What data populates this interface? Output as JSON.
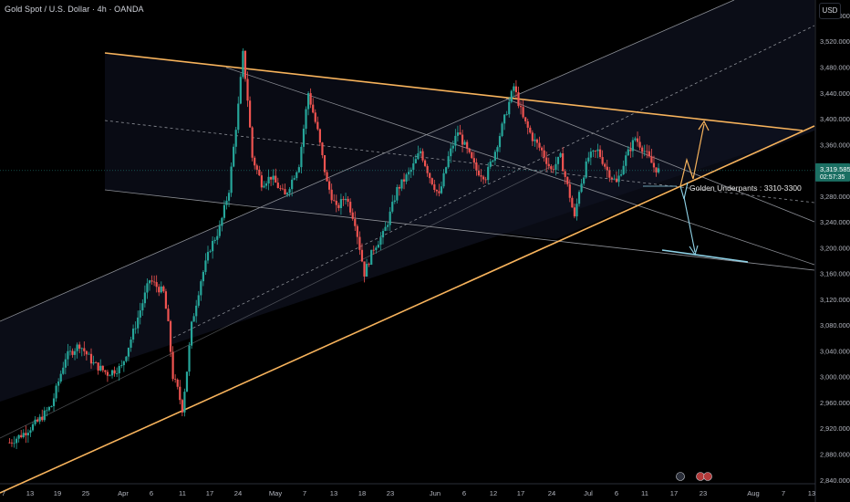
{
  "header": {
    "symbol_title": "Gold Spot / U.S. Dollar · 4h · OANDA",
    "currency_label": "USD"
  },
  "price_tag": {
    "price": "3,319.585",
    "countdown": "02:57:35"
  },
  "annotation": {
    "text": "Golden Underpants : 3310-3300"
  },
  "colors": {
    "background": "#000000",
    "up_candle": "#26a69a",
    "down_candle": "#ef5350",
    "trend_orange": "#f7b35c",
    "channel_line": "#8c8f96",
    "projection_blue": "#8fd3e8",
    "price_tag": "#1b6f63"
  },
  "chart_data": {
    "type": "candlestick",
    "timeframe": "4h",
    "y_axis": {
      "ticks": [
        "3,560.000",
        "3,520.000",
        "3,480.000",
        "3,440.000",
        "3,400.000",
        "3,360.000",
        "3,320.000",
        "3,280.000",
        "3,240.000",
        "3,200.000",
        "3,160.000",
        "3,120.000",
        "3,080.000",
        "3,040.000",
        "3,000.000",
        "2,960.000",
        "2,920.000",
        "2,880.000",
        "2,840.000"
      ],
      "range": [
        2834,
        3584
      ]
    },
    "x_axis": {
      "ticks": [
        "7",
        "13",
        "19",
        "25",
        "Apr",
        "6",
        "11",
        "17",
        "24",
        "May",
        "7",
        "13",
        "18",
        "23",
        "Jun",
        "6",
        "12",
        "17",
        "24",
        "Jul",
        "6",
        "11",
        "17",
        "23",
        "Aug",
        "7",
        "13"
      ]
    },
    "price_path": [
      [
        7,
        2898
      ],
      [
        10,
        2912
      ],
      [
        13,
        2930
      ],
      [
        16,
        2955
      ],
      [
        19,
        3030
      ],
      [
        22,
        3050
      ],
      [
        25,
        3020
      ],
      [
        28,
        3005
      ],
      [
        31,
        3015
      ],
      [
        34,
        3080
      ],
      [
        37,
        3150
      ],
      [
        40,
        3130
      ],
      [
        41,
        3080
      ],
      [
        42,
        3000
      ],
      [
        43,
        2980
      ],
      [
        44,
        2950
      ],
      [
        45,
        3010
      ],
      [
        46,
        3080
      ],
      [
        48,
        3150
      ],
      [
        50,
        3200
      ],
      [
        52,
        3230
      ],
      [
        54,
        3290
      ],
      [
        56,
        3420
      ],
      [
        57,
        3500
      ],
      [
        58,
        3430
      ],
      [
        59,
        3340
      ],
      [
        61,
        3300
      ],
      [
        63,
        3310
      ],
      [
        66,
        3280
      ],
      [
        69,
        3330
      ],
      [
        71,
        3440
      ],
      [
        73,
        3380
      ],
      [
        75,
        3300
      ],
      [
        77,
        3260
      ],
      [
        79,
        3280
      ],
      [
        81,
        3240
      ],
      [
        83,
        3160
      ],
      [
        85,
        3200
      ],
      [
        87,
        3220
      ],
      [
        88,
        3240
      ],
      [
        90,
        3290
      ],
      [
        93,
        3320
      ],
      [
        95,
        3350
      ],
      [
        97,
        3310
      ],
      [
        99,
        3280
      ],
      [
        101,
        3340
      ],
      [
        103,
        3380
      ],
      [
        105,
        3350
      ],
      [
        107,
        3320
      ],
      [
        109,
        3310
      ],
      [
        111,
        3350
      ],
      [
        113,
        3400
      ],
      [
        115,
        3450
      ],
      [
        117,
        3400
      ],
      [
        119,
        3370
      ],
      [
        121,
        3350
      ],
      [
        123,
        3320
      ],
      [
        125,
        3340
      ],
      [
        127,
        3280
      ],
      [
        128,
        3245
      ],
      [
        129,
        3290
      ],
      [
        131,
        3340
      ],
      [
        133,
        3350
      ],
      [
        135,
        3320
      ],
      [
        137,
        3300
      ],
      [
        139,
        3340
      ],
      [
        141,
        3370
      ],
      [
        143,
        3350
      ],
      [
        145,
        3325
      ],
      [
        146,
        3319.585
      ]
    ],
    "levels": {
      "golden_underpants_zone": [
        3300,
        3310
      ],
      "upside_target": 3410,
      "downside_target": 3205
    }
  }
}
